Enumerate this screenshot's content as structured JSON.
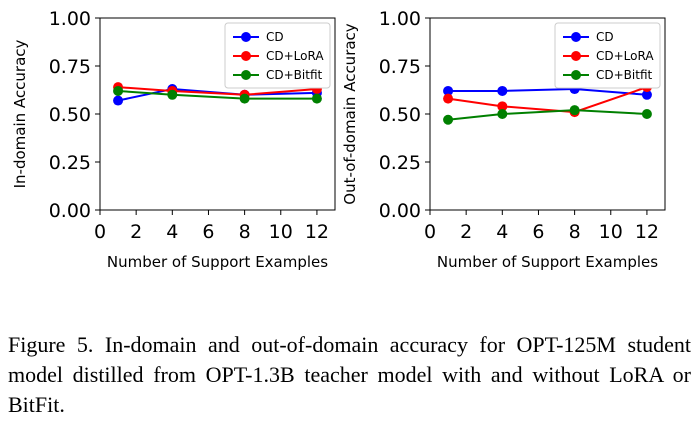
{
  "chart_data": [
    {
      "type": "line",
      "title": "",
      "xlabel": "Number of Support Examples",
      "ylabel": "In-domain Accuracy",
      "x": [
        1,
        4,
        8,
        12
      ],
      "xlim": [
        0,
        13
      ],
      "ylim": [
        0,
        1
      ],
      "xticks": [
        "0",
        "2",
        "4",
        "6",
        "8",
        "10",
        "12"
      ],
      "xtick_values": [
        0,
        2,
        4,
        6,
        8,
        10,
        12
      ],
      "yticks": [
        "0.00",
        "0.25",
        "0.50",
        "0.75",
        "1.00"
      ],
      "ytick_values": [
        0,
        0.25,
        0.5,
        0.75,
        1.0
      ],
      "grid": false,
      "legend_position": "top-right",
      "series": [
        {
          "name": "CD",
          "color": "#0000ff",
          "values": [
            0.57,
            0.63,
            0.6,
            0.61
          ]
        },
        {
          "name": "CD+LoRA",
          "color": "#ff0000",
          "values": [
            0.64,
            0.62,
            0.6,
            0.63
          ]
        },
        {
          "name": "CD+Bitfit",
          "color": "#008000",
          "values": [
            0.62,
            0.6,
            0.58,
            0.58
          ]
        }
      ]
    },
    {
      "type": "line",
      "title": "",
      "xlabel": "Number of Support Examples",
      "ylabel": "Out-of-domain Accuracy",
      "x": [
        1,
        4,
        8,
        12
      ],
      "xlim": [
        0,
        13
      ],
      "ylim": [
        0,
        1
      ],
      "xticks": [
        "0",
        "2",
        "4",
        "6",
        "8",
        "10",
        "12"
      ],
      "xtick_values": [
        0,
        2,
        4,
        6,
        8,
        10,
        12
      ],
      "yticks": [
        "0.00",
        "0.25",
        "0.50",
        "0.75",
        "1.00"
      ],
      "ytick_values": [
        0,
        0.25,
        0.5,
        0.75,
        1.0
      ],
      "grid": false,
      "legend_position": "top-right",
      "series": [
        {
          "name": "CD",
          "color": "#0000ff",
          "values": [
            0.62,
            0.62,
            0.63,
            0.6
          ]
        },
        {
          "name": "CD+LoRA",
          "color": "#ff0000",
          "values": [
            0.58,
            0.54,
            0.51,
            0.64
          ]
        },
        {
          "name": "CD+Bitfit",
          "color": "#008000",
          "values": [
            0.47,
            0.5,
            0.52,
            0.5
          ]
        }
      ]
    }
  ],
  "caption": "Figure 5. In-domain and out-of-domain accuracy for OPT-125M student model distilled from OPT-1.3B teacher model with and without LoRA or BitFit."
}
